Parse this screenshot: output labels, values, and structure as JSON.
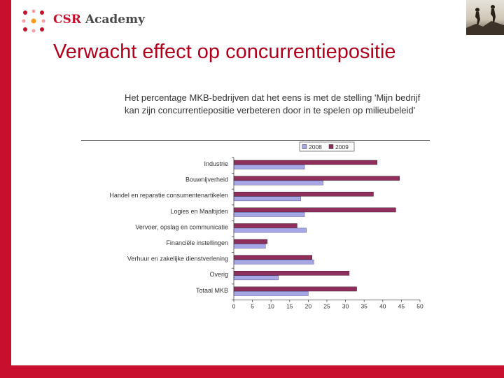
{
  "header": {
    "logo_text_accent": "CSR",
    "logo_text_rest": " Academy",
    "page_title": "Verwacht effect op concurrentiepositie"
  },
  "colors": {
    "brand_red": "#c8102e",
    "series_2008": "#a7a7e6",
    "series_2009": "#8e2f5b"
  },
  "chart_data": {
    "type": "bar",
    "orientation": "horizontal",
    "title": "Het percentage MKB-bedrijven dat het eens is met de stelling 'Mijn bedrijf\nkan zijn concurrentiepositie verbeteren door in te spelen op milieubeleid'",
    "categories": [
      "Industrie",
      "Bouwnijverheid",
      "Handel en reparatie consumentenartikelen",
      "Logies en Maaltijden",
      "Vervoer, opslag en communicatie",
      "Financiële instellingen",
      "Verhuur en zakelijke dienstverlening",
      "Overig",
      "Totaal MKB"
    ],
    "series": [
      {
        "name": "2008",
        "values": [
          19,
          24,
          18,
          19,
          19.5,
          8.5,
          21.5,
          12,
          20
        ]
      },
      {
        "name": "2009",
        "values": [
          38.5,
          44.5,
          37.5,
          43.5,
          17,
          9,
          21,
          31,
          33
        ]
      }
    ],
    "xlim": [
      0,
      50
    ],
    "xticks": [
      "0",
      "5",
      "10",
      "15",
      "20",
      "25",
      "30",
      "35",
      "40",
      "45",
      "50"
    ],
    "legend_position": "top-center",
    "grid": false
  }
}
